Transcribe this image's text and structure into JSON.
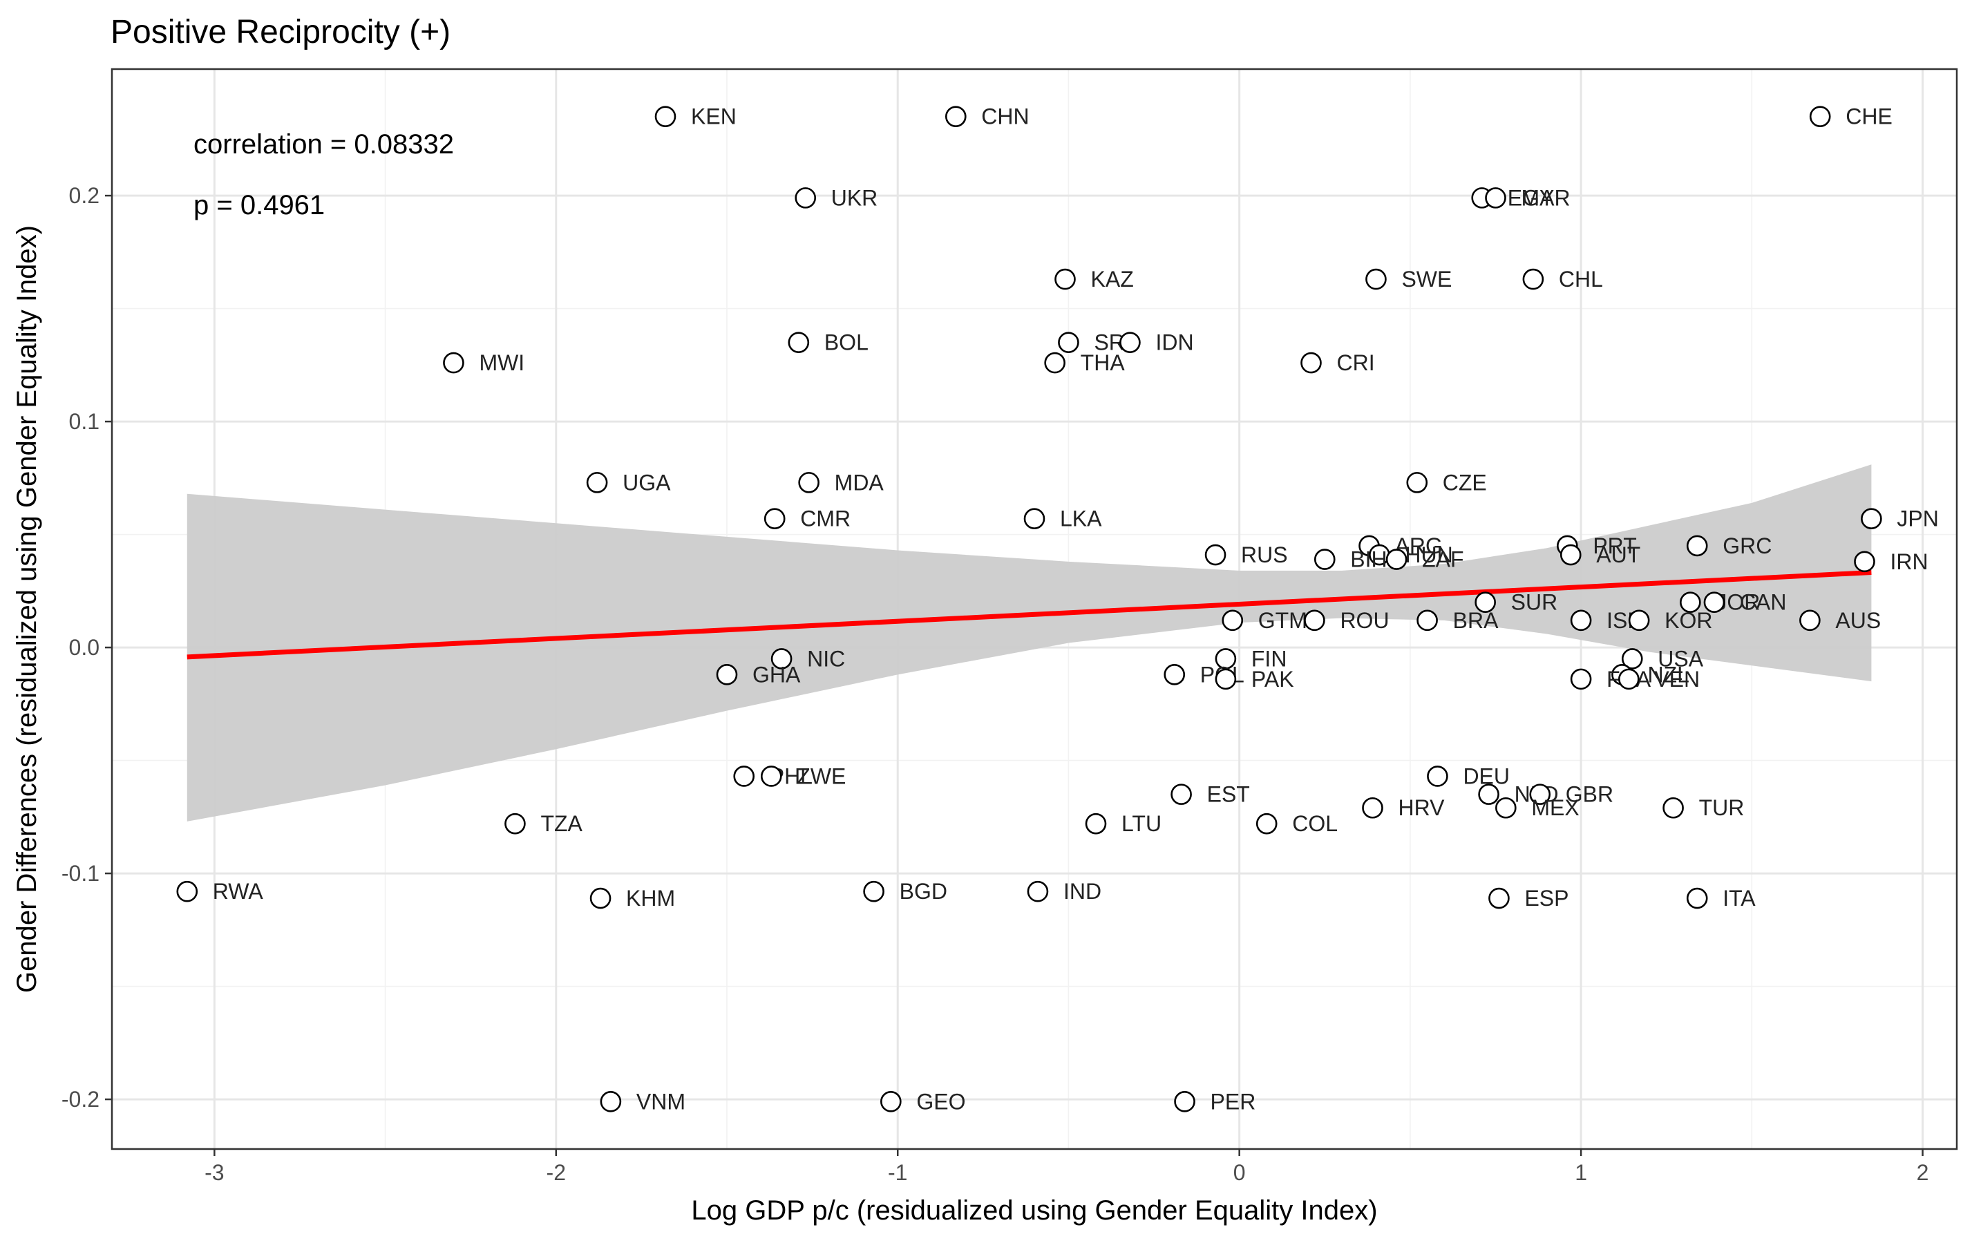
{
  "chart_data": {
    "type": "scatter",
    "title": "Positive Reciprocity (+)",
    "xlabel": "Log GDP p/c (residualized using Gender Equality Index)",
    "ylabel": "Gender Differences (residualized using Gender Equality Index)",
    "xlim": [
      -3.3,
      2.1
    ],
    "ylim": [
      -0.222,
      0.256
    ],
    "x_ticks": [
      -3,
      -2,
      -1,
      0,
      1,
      2
    ],
    "x_tick_labels": [
      "-3",
      "-2",
      "-1",
      "0",
      "1",
      "2"
    ],
    "y_ticks": [
      -0.2,
      -0.1,
      0.0,
      0.1,
      0.2
    ],
    "y_tick_labels": [
      "-0.2",
      "-0.1",
      "0.0",
      "0.1",
      "0.2"
    ],
    "grid": true,
    "annotations": {
      "correlation": "correlation = 0.08332",
      "p_value": "p = 0.4961"
    },
    "fit_line": {
      "color": "#ff0000",
      "x": [
        -3.08,
        1.85
      ],
      "y": [
        -0.0042,
        0.0332
      ]
    },
    "confidence_band": {
      "color": "#cccccc",
      "x": [
        -3.08,
        -2.5,
        -2.0,
        -1.5,
        -1.0,
        -0.5,
        0.0,
        0.3,
        0.6,
        0.9,
        1.2,
        1.5,
        1.85
      ],
      "upper": [
        0.068,
        0.061,
        0.055,
        0.049,
        0.043,
        0.038,
        0.034,
        0.034,
        0.037,
        0.044,
        0.054,
        0.064,
        0.081
      ],
      "lower": [
        -0.077,
        -0.061,
        -0.045,
        -0.028,
        -0.012,
        0.002,
        0.011,
        0.013,
        0.012,
        0.006,
        -0.002,
        -0.008,
        -0.015
      ]
    },
    "points": [
      {
        "label": "KEN",
        "x": -1.68,
        "y": 0.235
      },
      {
        "label": "CHN",
        "x": -0.83,
        "y": 0.235
      },
      {
        "label": "CHE",
        "x": 1.7,
        "y": 0.235
      },
      {
        "label": "UKR",
        "x": -1.27,
        "y": 0.199
      },
      {
        "label": "EGY",
        "x": 0.71,
        "y": 0.199
      },
      {
        "label": "MAR",
        "x": 0.75,
        "y": 0.199
      },
      {
        "label": "KAZ",
        "x": -0.51,
        "y": 0.163
      },
      {
        "label": "SWE",
        "x": 0.4,
        "y": 0.163
      },
      {
        "label": "CHL",
        "x": 0.86,
        "y": 0.163
      },
      {
        "label": "BOL",
        "x": -1.29,
        "y": 0.135
      },
      {
        "label": "SRB",
        "x": -0.5,
        "y": 0.135
      },
      {
        "label": "IDN",
        "x": -0.32,
        "y": 0.135
      },
      {
        "label": "MWI",
        "x": -2.3,
        "y": 0.126
      },
      {
        "label": "THA",
        "x": -0.54,
        "y": 0.126
      },
      {
        "label": "CRI",
        "x": 0.21,
        "y": 0.126
      },
      {
        "label": "UGA",
        "x": -1.88,
        "y": 0.073
      },
      {
        "label": "MDA",
        "x": -1.26,
        "y": 0.073
      },
      {
        "label": "CZE",
        "x": 0.52,
        "y": 0.073
      },
      {
        "label": "CMR",
        "x": -1.36,
        "y": 0.057
      },
      {
        "label": "LKA",
        "x": -0.6,
        "y": 0.057
      },
      {
        "label": "JPN",
        "x": 1.85,
        "y": 0.057
      },
      {
        "label": "ARG",
        "x": 0.38,
        "y": 0.045
      },
      {
        "label": "PRT",
        "x": 0.96,
        "y": 0.045
      },
      {
        "label": "GRC",
        "x": 1.34,
        "y": 0.045
      },
      {
        "label": "RUS",
        "x": -0.07,
        "y": 0.041
      },
      {
        "label": "HUN",
        "x": 0.41,
        "y": 0.041
      },
      {
        "label": "AUT",
        "x": 0.97,
        "y": 0.041
      },
      {
        "label": "BIH",
        "x": 0.25,
        "y": 0.039
      },
      {
        "label": "ZAF",
        "x": 0.46,
        "y": 0.039
      },
      {
        "label": "IRN",
        "x": 1.83,
        "y": 0.038
      },
      {
        "label": "SUR",
        "x": 0.72,
        "y": 0.02
      },
      {
        "label": "JOR",
        "x": 1.32,
        "y": 0.02
      },
      {
        "label": "CAN",
        "x": 1.39,
        "y": 0.02
      },
      {
        "label": "GTM",
        "x": -0.02,
        "y": 0.012
      },
      {
        "label": "ROU",
        "x": 0.22,
        "y": 0.012
      },
      {
        "label": "BRA",
        "x": 0.55,
        "y": 0.012
      },
      {
        "label": "ISR",
        "x": 1.0,
        "y": 0.012
      },
      {
        "label": "KOR",
        "x": 1.17,
        "y": 0.012
      },
      {
        "label": "AUS",
        "x": 1.67,
        "y": 0.012
      },
      {
        "label": "NIC",
        "x": -1.34,
        "y": -0.005
      },
      {
        "label": "FIN",
        "x": -0.04,
        "y": -0.005
      },
      {
        "label": "USA",
        "x": 1.15,
        "y": -0.005
      },
      {
        "label": "GHA",
        "x": -1.5,
        "y": -0.012
      },
      {
        "label": "POL",
        "x": -0.19,
        "y": -0.012
      },
      {
        "label": "NZL",
        "x": 1.12,
        "y": -0.012
      },
      {
        "label": "PAK",
        "x": -0.04,
        "y": -0.014
      },
      {
        "label": "FRA",
        "x": 1.0,
        "y": -0.014
      },
      {
        "label": "VEN",
        "x": 1.14,
        "y": -0.014
      },
      {
        "label": "PHL",
        "x": -1.45,
        "y": -0.057
      },
      {
        "label": "ZWE",
        "x": -1.37,
        "y": -0.057
      },
      {
        "label": "DEU",
        "x": 0.58,
        "y": -0.057
      },
      {
        "label": "EST",
        "x": -0.17,
        "y": -0.065
      },
      {
        "label": "NLD",
        "x": 0.73,
        "y": -0.065
      },
      {
        "label": "GBR",
        "x": 0.88,
        "y": -0.065
      },
      {
        "label": "HRV",
        "x": 0.39,
        "y": -0.071
      },
      {
        "label": "MEX",
        "x": 0.78,
        "y": -0.071
      },
      {
        "label": "TUR",
        "x": 1.27,
        "y": -0.071
      },
      {
        "label": "TZA",
        "x": -2.12,
        "y": -0.078
      },
      {
        "label": "LTU",
        "x": -0.42,
        "y": -0.078
      },
      {
        "label": "COL",
        "x": 0.08,
        "y": -0.078
      },
      {
        "label": "RWA",
        "x": -3.08,
        "y": -0.108
      },
      {
        "label": "BGD",
        "x": -1.07,
        "y": -0.108
      },
      {
        "label": "IND",
        "x": -0.59,
        "y": -0.108
      },
      {
        "label": "KHM",
        "x": -1.87,
        "y": -0.111
      },
      {
        "label": "ESP",
        "x": 0.76,
        "y": -0.111
      },
      {
        "label": "ITA",
        "x": 1.34,
        "y": -0.111
      },
      {
        "label": "VNM",
        "x": -1.84,
        "y": -0.201
      },
      {
        "label": "GEO",
        "x": -1.02,
        "y": -0.201
      },
      {
        "label": "PER",
        "x": -0.16,
        "y": -0.201
      }
    ]
  }
}
